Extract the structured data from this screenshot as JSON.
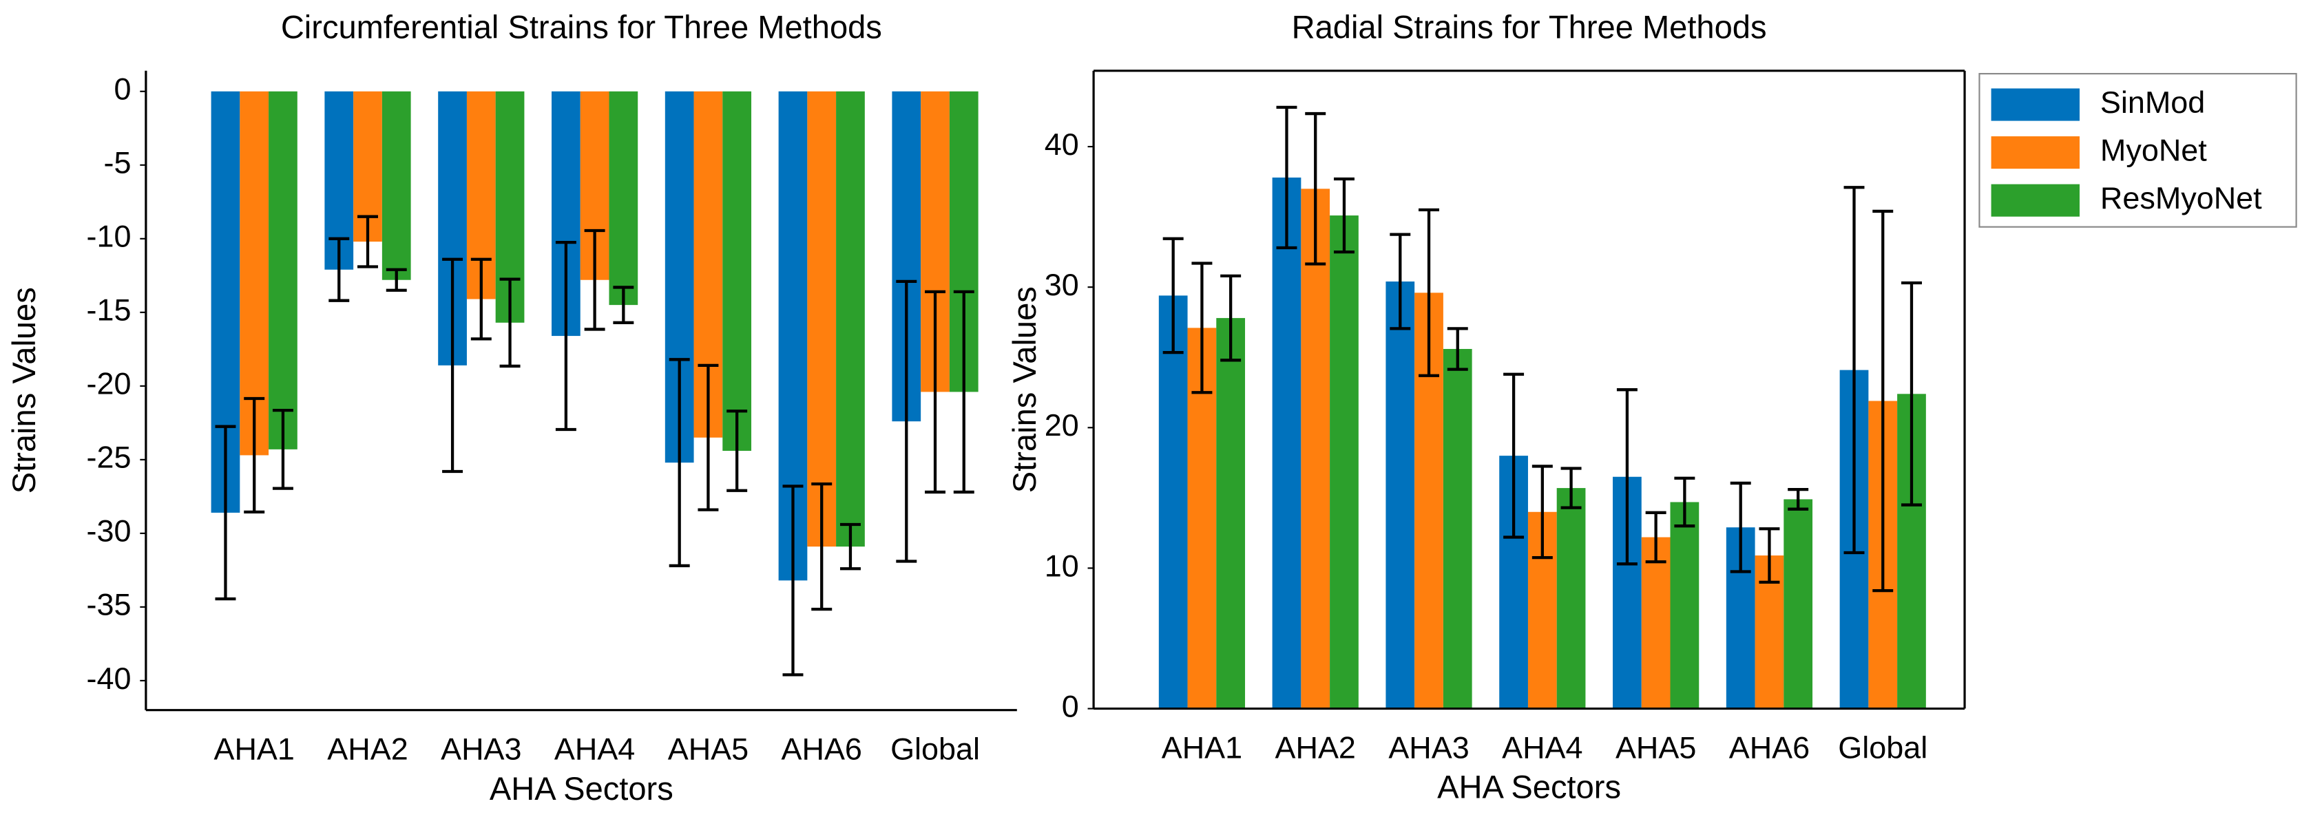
{
  "chart_data": [
    {
      "type": "bar",
      "title": "Circumferential Strains for Three Methods",
      "xlabel": "AHA Sectors",
      "ylabel": "Strains Values",
      "categories": [
        "AHA1",
        "AHA2",
        "AHA3",
        "AHA4",
        "AHA5",
        "AHA6",
        "Global"
      ],
      "series": [
        {
          "color": "#0072bd",
          "values": [
            -28.6,
            -12.1,
            -18.6,
            -16.6,
            -25.2,
            -33.2,
            -22.4
          ],
          "errors": [
            5.85,
            2.1,
            7.2,
            6.35,
            7.0,
            6.4,
            9.5
          ]
        },
        {
          "color": "#ff7f0e",
          "values": [
            -24.7,
            -10.2,
            -14.1,
            -12.8,
            -23.5,
            -30.9,
            -20.4
          ],
          "errors": [
            3.85,
            1.7,
            2.7,
            3.35,
            4.9,
            4.25,
            6.8
          ]
        },
        {
          "color": "#2ca02c",
          "values": [
            -24.3,
            -12.8,
            -15.7,
            -14.5,
            -24.4,
            -30.9,
            -20.4
          ],
          "errors": [
            2.65,
            0.7,
            2.95,
            1.2,
            2.7,
            1.5,
            6.8
          ]
        }
      ],
      "ylim": [
        -42,
        1.4
      ],
      "yticks": [
        0,
        -5,
        -10,
        -15,
        -20,
        -25,
        -30,
        -35,
        -40
      ],
      "frame": false
    },
    {
      "type": "bar",
      "title": "Radial Strains for Three Methods",
      "xlabel": "AHA Sectors",
      "ylabel": "Strains Values",
      "categories": [
        "AHA1",
        "AHA2",
        "AHA3",
        "AHA4",
        "AHA5",
        "AHA6",
        "Global"
      ],
      "series": [
        {
          "name": "SinMod",
          "color": "#0072bd",
          "values": [
            29.4,
            37.8,
            30.4,
            18.0,
            16.5,
            12.9,
            24.1
          ],
          "errors": [
            4.05,
            5.0,
            3.35,
            5.8,
            6.2,
            3.15,
            13.0
          ]
        },
        {
          "name": "MyoNet",
          "color": "#ff7f0e",
          "values": [
            27.1,
            37.0,
            29.6,
            14.0,
            12.2,
            10.9,
            21.9
          ],
          "errors": [
            4.6,
            5.35,
            5.9,
            3.25,
            1.75,
            1.9,
            13.5
          ]
        },
        {
          "name": "ResMyoNet",
          "color": "#2ca02c",
          "values": [
            27.8,
            35.1,
            25.6,
            15.7,
            14.7,
            14.9,
            22.4
          ],
          "errors": [
            3.0,
            2.6,
            1.45,
            1.4,
            1.7,
            0.7,
            7.9
          ]
        }
      ],
      "ylim": [
        0,
        45.4
      ],
      "yticks": [
        0,
        10,
        20,
        30,
        40
      ],
      "frame": true,
      "legend": "outside right"
    }
  ]
}
